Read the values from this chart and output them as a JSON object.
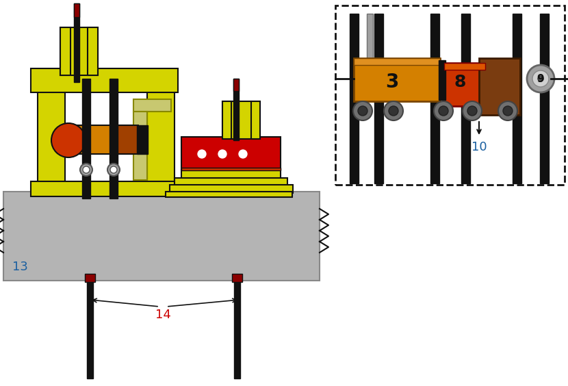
{
  "yellow": "#d4d400",
  "yellow_light": "#c8c830",
  "yellow_pale": "#c8c870",
  "gray_slab": "#b4b4b4",
  "gray_dark": "#808080",
  "red": "#cc0000",
  "dark_red": "#8b0000",
  "orange": "#d48000",
  "orange_red": "#cc3300",
  "brown": "#7a3c10",
  "black": "#111111",
  "near_black": "#222222",
  "blue_label": "#1a5fa0",
  "white": "#ffffff",
  "gray_pipe": "#707070",
  "gray_light": "#a0a0a0",
  "label_fontsize": 13
}
